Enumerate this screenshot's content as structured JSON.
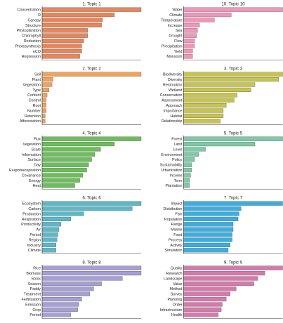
{
  "chart_data": [
    {
      "type": "bar",
      "orientation": "horizontal",
      "title": "1. Topic 1",
      "color": "#e8865a",
      "categories": [
        "Concentration",
        "R",
        "Canopy",
        "Structure",
        "Phytoplankton",
        "Chlorophyll",
        "Reduction",
        "Photosynthesis",
        "eCO",
        "Regression"
      ],
      "values": [
        1.0,
        0.73,
        0.61,
        0.6,
        0.46,
        0.46,
        0.42,
        0.4,
        0.4,
        0.38
      ],
      "xlim": [
        0,
        1
      ]
    },
    {
      "type": "bar",
      "orientation": "horizontal",
      "title": "10. Topic 10",
      "color": "#f196b8",
      "categories": [
        "Water",
        "Climate",
        "Temperature",
        "Increase",
        "Sea",
        "Drought",
        "Flow",
        "Precipitation",
        "Yield",
        "Monsoon"
      ],
      "values": [
        1.0,
        0.48,
        0.31,
        0.16,
        0.14,
        0.13,
        0.11,
        0.11,
        0.09,
        0.09
      ],
      "xlim": [
        0,
        1
      ]
    },
    {
      "type": "bar",
      "orientation": "horizontal",
      "title": "2. Topic 2",
      "color": "#efa35b",
      "categories": [
        "Soil",
        "Plant",
        "Vegetation",
        "Type",
        "Content",
        "Control",
        "Root",
        "Number",
        "Retention",
        "Afforestation"
      ],
      "values": [
        1.0,
        0.11,
        0.1,
        0.07,
        0.05,
        0.04,
        0.04,
        0.04,
        0.03,
        0.03
      ],
      "xlim": [
        0,
        1
      ]
    },
    {
      "type": "bar",
      "orientation": "horizontal",
      "title": "3. Topic 3",
      "color": "#c7c44d",
      "categories": [
        "Biodiversity",
        "Diversity",
        "Restoration",
        "Wetland",
        "Conservation",
        "Assessment",
        "Approach",
        "Importance",
        "Habitat",
        "Relationship"
      ],
      "values": [
        1.0,
        0.96,
        0.72,
        0.68,
        0.54,
        0.51,
        0.43,
        0.4,
        0.4,
        0.37
      ],
      "xlim": [
        0,
        1
      ]
    },
    {
      "type": "bar",
      "orientation": "horizontal",
      "title": "4. Topic 4",
      "color": "#6bbf59",
      "categories": [
        "Flux",
        "Vegetation",
        "Scale",
        "Information",
        "Surface",
        "Day",
        "Evapotranspiration",
        "Covariance",
        "Energy",
        "Heat"
      ],
      "values": [
        1.0,
        0.73,
        0.59,
        0.53,
        0.5,
        0.47,
        0.45,
        0.41,
        0.38,
        0.33
      ],
      "xlim": [
        0,
        1
      ]
    },
    {
      "type": "bar",
      "orientation": "horizontal",
      "title": "5. Topic 5",
      "color": "#7ccaa6",
      "categories": [
        "Forest",
        "Land",
        "Level",
        "Environment",
        "Policy",
        "Sustainability",
        "Urbanization",
        "Income",
        "Term",
        "Plantation"
      ],
      "values": [
        1.0,
        0.72,
        0.22,
        0.15,
        0.11,
        0.08,
        0.08,
        0.07,
        0.06,
        0.06
      ],
      "xlim": [
        0,
        1
      ]
    },
    {
      "type": "bar",
      "orientation": "horizontal",
      "title": "6. Topic 6",
      "color": "#5bb8c9",
      "categories": [
        "Ecosystem",
        "Carbon",
        "Production",
        "Respiration",
        "Productivity",
        "Air",
        "Period",
        "Region",
        "Industry",
        "Climate"
      ],
      "values": [
        1.0,
        0.91,
        0.42,
        0.29,
        0.19,
        0.17,
        0.16,
        0.15,
        0.14,
        0.14
      ],
      "xlim": [
        0,
        1
      ]
    },
    {
      "type": "bar",
      "orientation": "horizontal",
      "title": "7. Topic 7",
      "color": "#3aaee2",
      "categories": [
        "Impact",
        "Distribution",
        "Fish",
        "Population",
        "Range",
        "Marine",
        "Food",
        "Process",
        "Activity",
        "Simulation"
      ],
      "values": [
        1.0,
        0.58,
        0.56,
        0.55,
        0.5,
        0.5,
        0.49,
        0.49,
        0.47,
        0.45
      ],
      "xlim": [
        0,
        1
      ]
    },
    {
      "type": "bar",
      "orientation": "horizontal",
      "title": "8. Topic 8",
      "color": "#a69fd6",
      "categories": [
        "Rice",
        "Biomass",
        "Stock",
        "Season",
        "Paddy",
        "Treatment",
        "Fertilization",
        "Emission",
        "Crop",
        "Period"
      ],
      "values": [
        1.0,
        1.0,
        0.81,
        0.6,
        0.52,
        0.48,
        0.4,
        0.37,
        0.36,
        0.29
      ],
      "xlim": [
        0,
        1
      ]
    },
    {
      "type": "bar",
      "orientation": "horizontal",
      "title": "9. Topic 9",
      "color": "#d67aab",
      "categories": [
        "Quality",
        "Research",
        "Landscape",
        "Value",
        "Method",
        "Survey",
        "Planning",
        "Order",
        "Infrastructure",
        "Health"
      ],
      "values": [
        1.0,
        0.82,
        0.75,
        0.71,
        0.53,
        0.47,
        0.43,
        0.39,
        0.38,
        0.35
      ],
      "xlim": [
        0,
        1
      ]
    }
  ]
}
